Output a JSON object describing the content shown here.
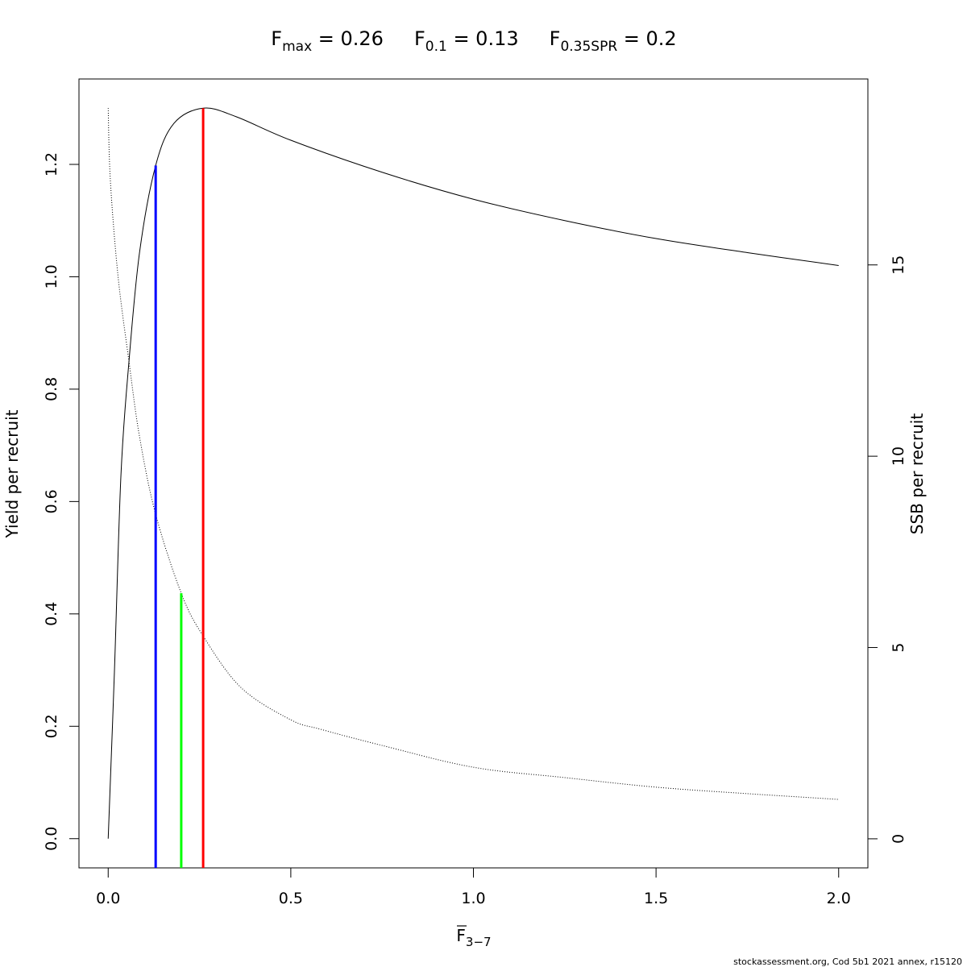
{
  "chart_data": {
    "type": "line",
    "title": {
      "fmax": {
        "sym": "F",
        "sub": "max",
        "val": " = 0.26"
      },
      "f01": {
        "sym": "F",
        "sub": "0.1",
        "val": " = 0.13"
      },
      "fspr": {
        "sym": "F",
        "sub": "0.35SPR",
        "val": " = 0.2"
      }
    },
    "xlabel": {
      "sym": "F",
      "sub": "3−7"
    },
    "ylabel": "Yield per recruit",
    "ylabel_right": "SSB per recruit",
    "xlim": [
      -0.08,
      2.08
    ],
    "ylim": [
      -0.052,
      1.352
    ],
    "ylim_right": [
      -0.76,
      19.86
    ],
    "x_ticks": [
      0.0,
      0.5,
      1.0,
      1.5,
      2.0
    ],
    "x_tick_labels": [
      "0.0",
      "0.5",
      "1.0",
      "1.5",
      "2.0"
    ],
    "y_ticks": [
      0.0,
      0.2,
      0.4,
      0.6,
      0.8,
      1.0,
      1.2
    ],
    "y_tick_labels": [
      "0.0",
      "0.2",
      "0.4",
      "0.6",
      "0.8",
      "1.0",
      "1.2"
    ],
    "y_right_ticks": [
      0,
      5,
      10,
      15
    ],
    "y_right_tick_labels": [
      "0",
      "5",
      "10",
      "15"
    ],
    "series": [
      {
        "axis": "left",
        "style": "solid",
        "color": "#000000",
        "x": [
          0,
          0.017,
          0.035,
          0.057,
          0.086,
          0.13,
          0.18,
          0.26,
          0.35,
          0.5,
          0.75,
          1.0,
          1.25,
          1.5,
          1.75,
          2.0
        ],
        "y": [
          0,
          0.296,
          0.648,
          0.85,
          1.044,
          1.198,
          1.273,
          1.3,
          1.285,
          1.243,
          1.186,
          1.138,
          1.1,
          1.068,
          1.043,
          1.02
        ]
      },
      {
        "axis": "right",
        "style": "dotted",
        "color": "#000000",
        "x": [
          0,
          0.006,
          0.027,
          0.057,
          0.086,
          0.13,
          0.2,
          0.26,
          0.364,
          0.5,
          0.583,
          0.75,
          1.0,
          1.25,
          1.5,
          1.75,
          2.0
        ],
        "y": [
          19.1,
          17.2,
          14.7,
          12.47,
          10.5,
          8.48,
          6.42,
          5.3,
          3.95,
          3.11,
          2.86,
          2.44,
          1.87,
          1.6,
          1.35,
          1.18,
          1.03
        ]
      }
    ],
    "reference_lines": [
      {
        "name": "F0.1",
        "x": 0.13,
        "axis": "left",
        "top": 1.198,
        "color": "#0000ff"
      },
      {
        "name": "F0.35SPR",
        "x": 0.2,
        "axis": "right",
        "top": 6.42,
        "color": "#00ff00"
      },
      {
        "name": "Fmax",
        "x": 0.26,
        "axis": "left",
        "top": 1.3,
        "color": "#ff0000"
      }
    ],
    "grid": false
  },
  "footer": "stockassessment.org, Cod 5b1 2021 annex, r15120"
}
